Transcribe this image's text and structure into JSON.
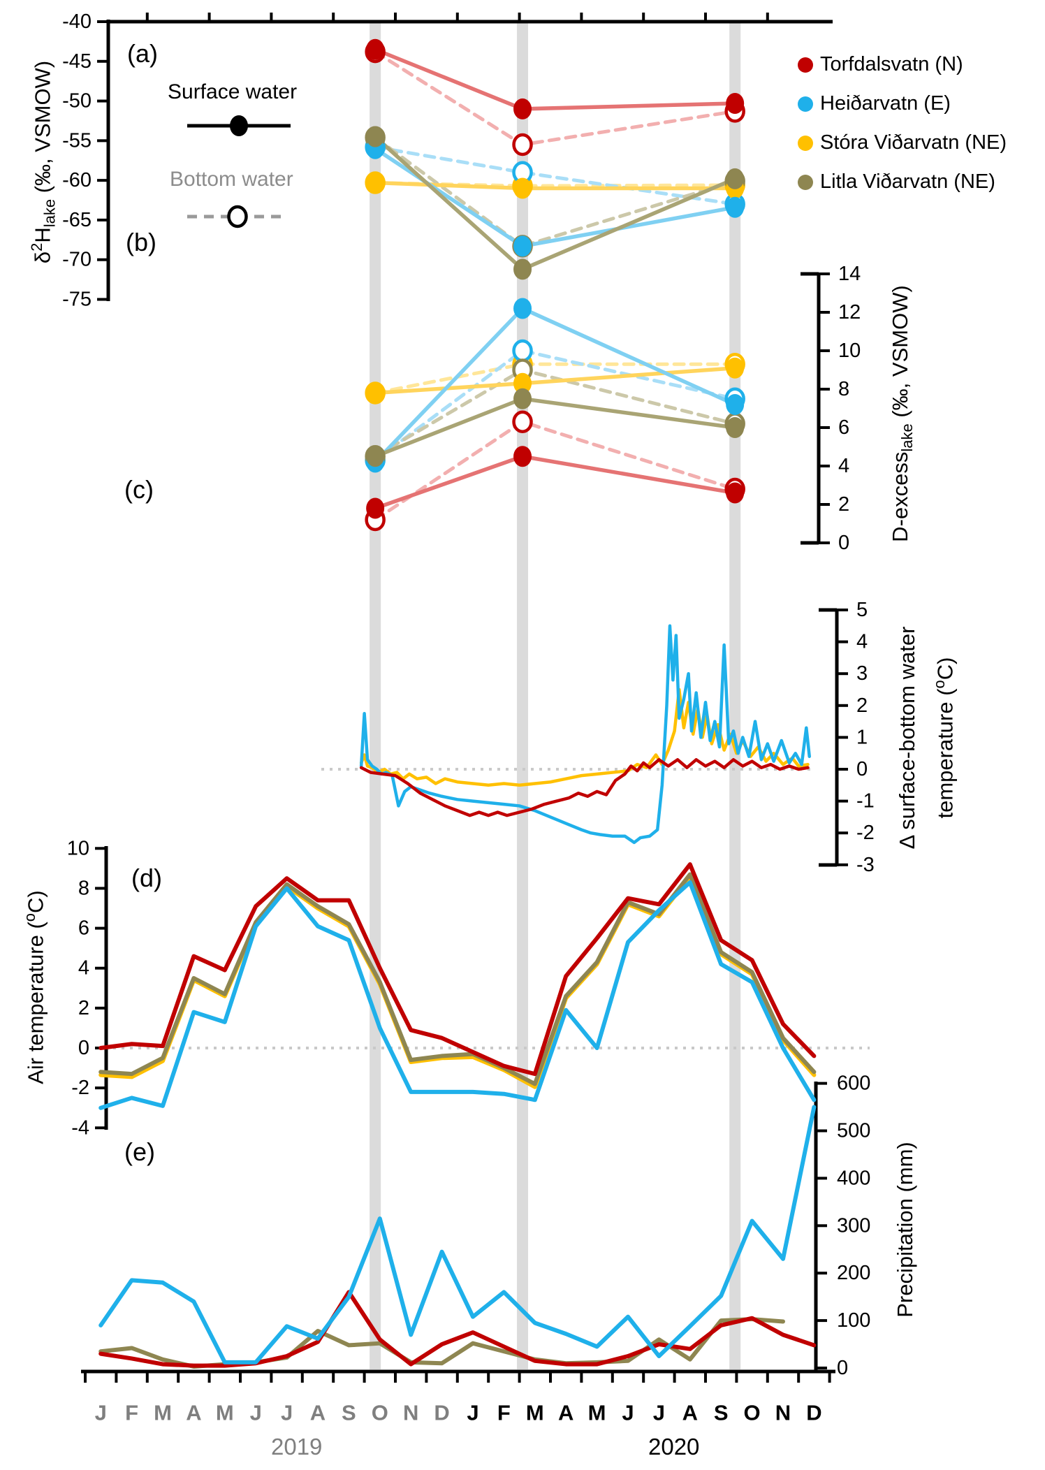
{
  "figure": {
    "background": "#ffffff",
    "panel_letters": {
      "a": "(a)",
      "b": "(b)",
      "c": "(c)",
      "d": "(d)",
      "e": "(e)"
    }
  },
  "colors": {
    "torfdalsvatn": "#C00000",
    "torfdalsvatn_line": "#E57373",
    "torfdalsvatn_dash": "#F2AFAF",
    "heidarvatn": "#1FB0EA",
    "heidarvatn_line": "#7FD0F2",
    "heidarvatn_dash": "#A9DEF7",
    "stora": "#FFC000",
    "stora_line": "#FFD45C",
    "stora_dash": "#FFE699",
    "litla": "#8E8651",
    "litla_line": "#A9A474",
    "litla_dash": "#CCC8A9",
    "sample_bar": "#DBDBDB",
    "zero_dotted": "#C9C9C9",
    "gray_text": "#8C8C8C",
    "black": "#000000"
  },
  "legend": {
    "items": [
      {
        "label": "Torfdalsvatn (N)",
        "color": "#C00000"
      },
      {
        "label": "Heiðarvatn (E)",
        "color": "#1FB0EA"
      },
      {
        "label": "Stóra Viðarvatn (NE)",
        "color": "#FFC000"
      },
      {
        "label": "Litla Viðarvatn (NE)",
        "color": "#8E8651"
      }
    ]
  },
  "inplot_legend": {
    "surface_label": "Surface water",
    "bottom_label": "Bottom water"
  },
  "titles": {
    "a_d": "δ",
    "a_sup": "2",
    "a_h": "H",
    "a_sub": "lake",
    "a_post": " (‰, VSMOW)",
    "b_pre": "D-excess",
    "b_sub": "lake",
    "b_post": " (‰, VSMOW)",
    "c_line1": "Δ surface-bottom water",
    "c_line2a": "temperature (",
    "c_sup": "o",
    "c_line2b": "C)",
    "d_pre": "Air temperature (",
    "d_sup": "o",
    "d_post": "C)",
    "e_title": "Precipitation (mm)"
  },
  "x_axis": {
    "months_2019": [
      "J",
      "F",
      "M",
      "A",
      "M",
      "J",
      "J",
      "A",
      "S",
      "O",
      "N",
      "D"
    ],
    "months_2020": [
      "J",
      "F",
      "M",
      "A",
      "M",
      "J",
      "J",
      "A",
      "S",
      "O",
      "N",
      "D"
    ],
    "year_2019": "2019",
    "year_2020": "2020",
    "months_2019_color": "#7F7F7F",
    "months_2020_color": "#000000"
  },
  "sampling_bars_month_positions": [
    9.35,
    14.1,
    20.95
  ],
  "chart_data": [
    {
      "id": "a",
      "type": "scatter",
      "title": "d2H lake (permil, VSMOW)",
      "ylim": [
        -75,
        -40
      ],
      "yticks": [
        -40,
        -45,
        -50,
        -55,
        -60,
        -65,
        -70,
        -75
      ],
      "x_sample_months": [
        9.35,
        14.1,
        20.95
      ],
      "series": {
        "surface": {
          "torfdalsvatn": [
            -43.5,
            -51.0,
            -50.3
          ],
          "heidarvatn": [
            -56.0,
            -68.3,
            -63.4
          ],
          "stora": [
            -60.3,
            -61.0,
            -61.0
          ],
          "litla": [
            -54.5,
            -71.2,
            -59.8
          ]
        },
        "bottom": {
          "torfdalsvatn": [
            -43.8,
            -55.5,
            -51.3
          ],
          "heidarvatn": [
            -55.8,
            -59.0,
            -63.0
          ],
          "stora": [
            -60.3,
            -60.7,
            -60.6
          ],
          "litla": [
            -54.6,
            -68.3,
            -60.1
          ]
        }
      }
    },
    {
      "id": "b",
      "type": "scatter",
      "title": "D-excess lake (permil, VSMOW)",
      "ylim": [
        0,
        14
      ],
      "yticks": [
        14,
        12,
        10,
        8,
        6,
        4,
        2,
        0
      ],
      "x_sample_months": [
        9.35,
        14.1,
        20.95
      ],
      "series": {
        "surface": {
          "torfdalsvatn": [
            1.8,
            4.5,
            2.6
          ],
          "heidarvatn": [
            4.2,
            12.2,
            7.2
          ],
          "stora": [
            7.8,
            8.3,
            9.1
          ],
          "litla": [
            4.5,
            7.5,
            6.0
          ]
        },
        "bottom": {
          "torfdalsvatn": [
            1.2,
            6.3,
            2.8
          ],
          "heidarvatn": [
            4.3,
            10.0,
            7.5
          ],
          "stora": [
            7.8,
            9.3,
            9.3
          ],
          "litla": [
            4.5,
            9.0,
            6.2
          ]
        }
      }
    },
    {
      "id": "c",
      "type": "line",
      "title": "Delta surface-bottom water temperature (C)",
      "ylim": [
        -3,
        5
      ],
      "yticks": [
        5,
        4,
        3,
        2,
        1,
        0,
        -1,
        -2,
        -3
      ],
      "zero_line": true,
      "series": {
        "torfdalsvatn": [
          [
            8.9,
            0.05
          ],
          [
            9.2,
            -0.1
          ],
          [
            9.6,
            -0.15
          ],
          [
            10.0,
            -0.2
          ],
          [
            10.4,
            -0.45
          ],
          [
            10.8,
            -0.75
          ],
          [
            11.2,
            -0.95
          ],
          [
            11.6,
            -1.15
          ],
          [
            12.0,
            -1.3
          ],
          [
            12.4,
            -1.45
          ],
          [
            12.7,
            -1.35
          ],
          [
            13.0,
            -1.45
          ],
          [
            13.3,
            -1.35
          ],
          [
            13.6,
            -1.45
          ],
          [
            14.0,
            -1.35
          ],
          [
            14.4,
            -1.25
          ],
          [
            14.8,
            -1.1
          ],
          [
            15.2,
            -1.0
          ],
          [
            15.6,
            -0.9
          ],
          [
            15.9,
            -0.75
          ],
          [
            16.2,
            -0.85
          ],
          [
            16.5,
            -0.7
          ],
          [
            16.8,
            -0.8
          ],
          [
            17.1,
            -0.35
          ],
          [
            17.4,
            -0.15
          ],
          [
            17.6,
            0.1
          ],
          [
            17.8,
            -0.05
          ],
          [
            18.0,
            0.2
          ],
          [
            18.2,
            0.05
          ],
          [
            18.5,
            0.3
          ],
          [
            18.8,
            0.1
          ],
          [
            19.1,
            0.3
          ],
          [
            19.4,
            0.05
          ],
          [
            19.7,
            0.3
          ],
          [
            20.0,
            0.1
          ],
          [
            20.3,
            0.25
          ],
          [
            20.6,
            0.05
          ],
          [
            20.9,
            0.3
          ],
          [
            21.2,
            0.1
          ],
          [
            21.5,
            0.25
          ],
          [
            21.8,
            0.05
          ],
          [
            22.1,
            0.15
          ],
          [
            22.4,
            0.0
          ],
          [
            22.7,
            0.1
          ],
          [
            23.0,
            0.0
          ],
          [
            23.3,
            0.05
          ]
        ],
        "heidarvatn": [
          [
            8.9,
            0.1
          ],
          [
            9.0,
            1.75
          ],
          [
            9.1,
            0.3
          ],
          [
            9.25,
            0.1
          ],
          [
            9.4,
            0.0
          ],
          [
            9.55,
            -0.15
          ],
          [
            9.7,
            -0.1
          ],
          [
            9.9,
            -0.2
          ],
          [
            10.1,
            -1.15
          ],
          [
            10.3,
            -0.7
          ],
          [
            10.5,
            -0.55
          ],
          [
            10.8,
            -0.65
          ],
          [
            11.1,
            -0.75
          ],
          [
            11.5,
            -0.85
          ],
          [
            12.0,
            -0.95
          ],
          [
            12.5,
            -1.0
          ],
          [
            13.0,
            -1.05
          ],
          [
            13.5,
            -1.1
          ],
          [
            14.0,
            -1.15
          ],
          [
            14.5,
            -1.3
          ],
          [
            15.0,
            -1.5
          ],
          [
            15.5,
            -1.7
          ],
          [
            16.0,
            -1.9
          ],
          [
            16.3,
            -2.0
          ],
          [
            16.6,
            -2.05
          ],
          [
            17.0,
            -2.1
          ],
          [
            17.4,
            -2.1
          ],
          [
            17.7,
            -2.3
          ],
          [
            17.9,
            -2.15
          ],
          [
            18.2,
            -2.1
          ],
          [
            18.45,
            -1.9
          ],
          [
            18.6,
            -0.5
          ],
          [
            18.75,
            2.0
          ],
          [
            18.85,
            4.5
          ],
          [
            18.95,
            2.8
          ],
          [
            19.05,
            4.2
          ],
          [
            19.15,
            1.6
          ],
          [
            19.3,
            2.2
          ],
          [
            19.45,
            3.0
          ],
          [
            19.55,
            1.2
          ],
          [
            19.7,
            2.4
          ],
          [
            19.85,
            1.0
          ],
          [
            20.0,
            2.1
          ],
          [
            20.15,
            0.9
          ],
          [
            20.3,
            1.5
          ],
          [
            20.45,
            0.7
          ],
          [
            20.6,
            3.9
          ],
          [
            20.75,
            0.8
          ],
          [
            20.9,
            1.2
          ],
          [
            21.05,
            0.5
          ],
          [
            21.2,
            1.0
          ],
          [
            21.4,
            0.4
          ],
          [
            21.6,
            1.5
          ],
          [
            21.8,
            0.3
          ],
          [
            22.0,
            0.8
          ],
          [
            22.2,
            0.25
          ],
          [
            22.45,
            0.9
          ],
          [
            22.7,
            0.2
          ],
          [
            22.9,
            0.5
          ],
          [
            23.1,
            0.15
          ],
          [
            23.25,
            1.3
          ],
          [
            23.35,
            0.4
          ]
        ],
        "stora": [
          [
            8.9,
            0.2
          ],
          [
            9.0,
            0.45
          ],
          [
            9.1,
            0.1
          ],
          [
            9.25,
            0.05
          ],
          [
            9.45,
            -0.1
          ],
          [
            9.65,
            0.0
          ],
          [
            9.85,
            -0.15
          ],
          [
            10.05,
            -0.1
          ],
          [
            10.25,
            -0.3
          ],
          [
            10.45,
            -0.15
          ],
          [
            10.7,
            -0.3
          ],
          [
            11.0,
            -0.25
          ],
          [
            11.3,
            -0.45
          ],
          [
            11.6,
            -0.3
          ],
          [
            12.0,
            -0.4
          ],
          [
            12.5,
            -0.45
          ],
          [
            13.0,
            -0.5
          ],
          [
            13.5,
            -0.45
          ],
          [
            14.0,
            -0.5
          ],
          [
            14.5,
            -0.45
          ],
          [
            15.0,
            -0.4
          ],
          [
            15.5,
            -0.3
          ],
          [
            16.0,
            -0.2
          ],
          [
            16.5,
            -0.15
          ],
          [
            17.0,
            -0.1
          ],
          [
            17.5,
            -0.05
          ],
          [
            17.8,
            0.15
          ],
          [
            18.1,
            0.05
          ],
          [
            18.4,
            0.45
          ],
          [
            18.6,
            0.15
          ],
          [
            18.8,
            0.6
          ],
          [
            19.0,
            1.2
          ],
          [
            19.15,
            2.5
          ],
          [
            19.3,
            1.3
          ],
          [
            19.45,
            2.1
          ],
          [
            19.6,
            1.1
          ],
          [
            19.75,
            1.9
          ],
          [
            19.9,
            1.0
          ],
          [
            20.05,
            1.7
          ],
          [
            20.2,
            0.8
          ],
          [
            20.4,
            1.4
          ],
          [
            20.6,
            0.6
          ],
          [
            20.8,
            1.1
          ],
          [
            21.0,
            0.5
          ],
          [
            21.2,
            0.9
          ],
          [
            21.45,
            0.4
          ],
          [
            21.7,
            0.7
          ],
          [
            21.95,
            0.25
          ],
          [
            22.2,
            0.5
          ],
          [
            22.5,
            0.15
          ],
          [
            22.8,
            0.35
          ],
          [
            23.0,
            0.1
          ],
          [
            23.3,
            0.15
          ]
        ]
      }
    },
    {
      "id": "d",
      "type": "line",
      "title": "Air temperature (C)",
      "ylim": [
        -4,
        10
      ],
      "yticks": [
        10,
        8,
        6,
        4,
        2,
        0,
        -2,
        -4
      ],
      "zero_line": true,
      "series": {
        "torfdalsvatn": [
          0.0,
          0.2,
          0.1,
          4.6,
          3.9,
          7.1,
          8.5,
          7.4,
          7.4,
          4.0,
          0.9,
          0.5,
          -0.2,
          -0.9,
          -1.3,
          3.6,
          5.5,
          7.5,
          7.2,
          9.2,
          5.4,
          4.4,
          1.2,
          -0.4
        ],
        "litla": [
          -1.2,
          -1.3,
          -0.5,
          3.5,
          2.7,
          6.3,
          8.2,
          7.1,
          6.2,
          3.3,
          -0.6,
          -0.4,
          -0.3,
          -1.0,
          -1.8,
          2.6,
          4.3,
          7.3,
          6.7,
          8.7,
          4.8,
          3.8,
          0.5,
          -1.2
        ],
        "stora": [
          -1.35,
          -1.45,
          -0.65,
          3.4,
          2.6,
          6.2,
          8.1,
          7.0,
          6.1,
          3.2,
          -0.7,
          -0.5,
          -0.45,
          -1.1,
          -1.95,
          2.5,
          4.2,
          7.2,
          6.6,
          8.6,
          4.7,
          3.7,
          0.4,
          -1.35
        ],
        "heidarvatn": [
          -3.0,
          -2.5,
          -2.9,
          1.8,
          1.3,
          6.1,
          8.0,
          6.1,
          5.4,
          1.0,
          -2.2,
          -2.2,
          -2.2,
          -2.3,
          -2.6,
          1.9,
          0.0,
          5.3,
          6.9,
          8.3,
          4.2,
          3.3,
          0.0,
          -2.6
        ]
      }
    },
    {
      "id": "e",
      "type": "line",
      "title": "Precipitation (mm)",
      "ylim": [
        0,
        600
      ],
      "yticks": [
        600,
        500,
        400,
        300,
        200,
        100,
        0
      ],
      "series": {
        "torfdalsvatn": [
          30,
          20,
          8,
          5,
          5,
          10,
          25,
          55,
          160,
          60,
          8,
          50,
          75,
          45,
          15,
          8,
          8,
          25,
          50,
          40,
          90,
          105,
          70,
          48
        ],
        "litla": [
          35,
          42,
          18,
          3,
          8,
          12,
          22,
          78,
          48,
          52,
          12,
          10,
          52,
          35,
          18,
          10,
          12,
          15,
          60,
          18,
          100,
          103,
          98,
          null
        ],
        "heidarvatn": [
          90,
          185,
          180,
          140,
          12,
          12,
          88,
          62,
          150,
          315,
          70,
          245,
          108,
          160,
          95,
          72,
          45,
          108,
          25,
          88,
          152,
          310,
          230,
          550
        ]
      }
    }
  ]
}
